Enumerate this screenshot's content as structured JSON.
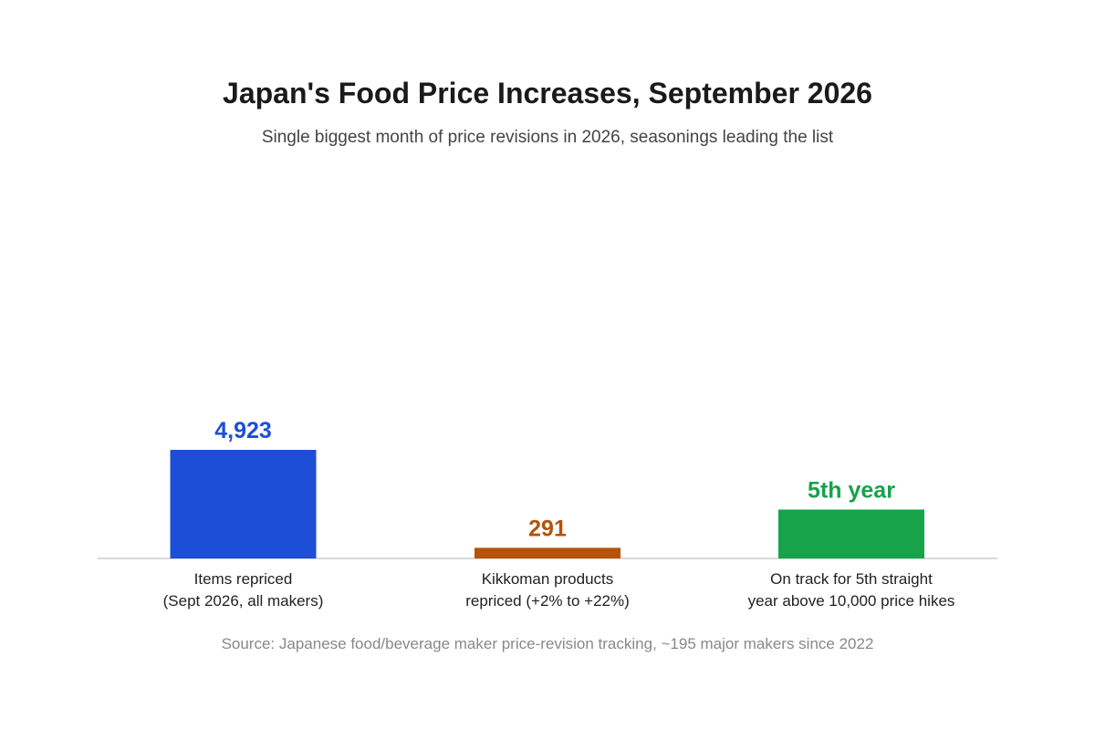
{
  "chart_data": {
    "type": "bar",
    "title": "Japan's Food Price Increases, September 2026",
    "subtitle": "Single biggest month of price revisions in 2026, seasonings leading the list",
    "xlabel": "",
    "ylabel": "",
    "grid": false,
    "legend": "none",
    "categories": [
      [
        "Items repriced",
        "(Sept 2026, all makers)"
      ],
      [
        "Kikkoman products",
        "repriced (+2% to +22%)"
      ],
      [
        "On track for 5th straight",
        "year above 10,000 price hikes"
      ]
    ],
    "bar_levels": [
      1.0,
      0.098,
      0.45
    ],
    "data_labels": [
      "4,923",
      "291",
      "5th year"
    ],
    "colors": [
      "#1d4ed8",
      "#b45309",
      "#16a34a"
    ],
    "source": "Source: Japanese food/beverage maker price-revision tracking, ~195 major makers since 2022"
  }
}
